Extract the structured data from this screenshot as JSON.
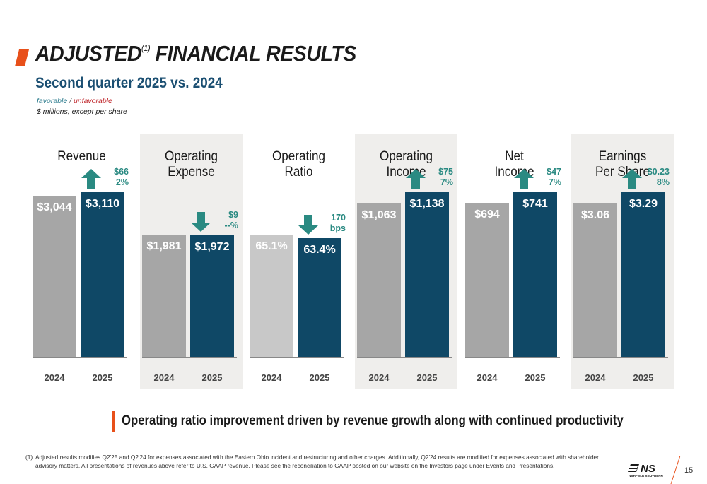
{
  "header": {
    "title_main": "ADJUSTED",
    "title_sup": "(1)",
    "title_rest": " FINANCIAL RESULTS",
    "subtitle": "Second quarter 2025 vs. 2024",
    "legend_favorable": "favorable",
    "legend_sep": "/",
    "legend_unfavorable": "unfavorable",
    "units": "$ millions, except per share"
  },
  "colors": {
    "accent": "#e8501a",
    "prior_bar": "#a6a6a6",
    "current_bar": "#0f4866",
    "favorable": "#2a8a82",
    "unfavorable": "#c0282d",
    "panel_bg": "#efeeec"
  },
  "chart_data": [
    {
      "type": "bar",
      "title": "Revenue",
      "categories": [
        "2024",
        "2025"
      ],
      "values": [
        3044,
        3110
      ],
      "labels": [
        "$3,044",
        "$3,110"
      ],
      "delta": "$66",
      "delta_pct": "2%",
      "direction": "up",
      "favorable": true
    },
    {
      "type": "bar",
      "title": "Operating\nExpense",
      "categories": [
        "2024",
        "2025"
      ],
      "values": [
        1981,
        1972
      ],
      "labels": [
        "$1,981",
        "$1,972"
      ],
      "delta": "$9",
      "delta_pct": "--%",
      "direction": "down",
      "favorable": true
    },
    {
      "type": "bar",
      "title": "Operating\nRatio",
      "categories": [
        "2024",
        "2025"
      ],
      "values": [
        65.1,
        63.4
      ],
      "labels": [
        "65.1%",
        "63.4%"
      ],
      "delta": "170",
      "delta_pct": "bps",
      "direction": "down",
      "favorable": true
    },
    {
      "type": "bar",
      "title": "Operating\nIncome",
      "categories": [
        "2024",
        "2025"
      ],
      "values": [
        1063,
        1138
      ],
      "labels": [
        "$1,063",
        "$1,138"
      ],
      "delta": "$75",
      "delta_pct": "7%",
      "direction": "up",
      "favorable": true
    },
    {
      "type": "bar",
      "title": "Net\nIncome",
      "categories": [
        "2024",
        "2025"
      ],
      "values": [
        694,
        741
      ],
      "labels": [
        "$694",
        "$741"
      ],
      "delta": "$47",
      "delta_pct": "7%",
      "direction": "up",
      "favorable": true
    },
    {
      "type": "bar",
      "title": "Earnings\nPer Share",
      "categories": [
        "2024",
        "2025"
      ],
      "values": [
        3.06,
        3.29
      ],
      "labels": [
        "$3.06",
        "$3.29"
      ],
      "delta": "$0.23",
      "delta_pct": "8%",
      "direction": "up",
      "favorable": true
    }
  ],
  "callout": "Operating ratio improvement driven by revenue growth along with continued productivity",
  "footnote": {
    "marker": "(1)",
    "text": "Adjusted results modifies Q2'25 and Q2'24 for expenses associated with the Eastern Ohio incident and restructuring and other charges.  Additionally, Q2'24 results are modified for expenses associated with shareholder advisory matters. All presentations of revenues above refer to U.S. GAAP revenue. Please see the reconciliation to GAAP posted on our website on the Investors page under Events and Presentations."
  },
  "logo": {
    "mark": "NS",
    "text": "NORFOLK SOUTHERN"
  },
  "page_number": "15"
}
